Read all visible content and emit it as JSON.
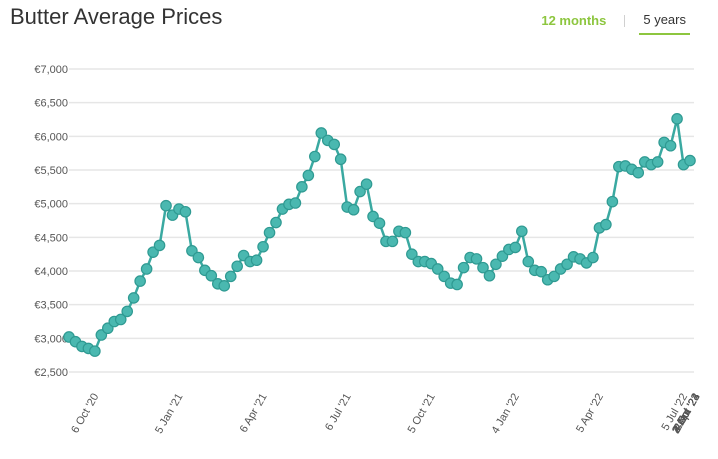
{
  "title": "Butter Average Prices",
  "tabs": {
    "twelve_months": "12 months",
    "five_years": "5 years",
    "active": "5 years"
  },
  "colors": {
    "line": "#3aa9a1",
    "marker": "#4ab8b0",
    "marker_stroke": "#2f9a92",
    "accent": "#8dc63f",
    "grid": "#e6e6e6"
  },
  "chart_data": {
    "type": "line",
    "title": "Butter Average Prices",
    "xlabel": "",
    "ylabel": "",
    "ylim": [
      2500,
      7000
    ],
    "y_ticks": [
      2500,
      3000,
      3500,
      4000,
      4500,
      5000,
      5500,
      6000,
      6500,
      7000
    ],
    "y_tick_labels": [
      "€2,500",
      "€3,000",
      "€3,500",
      "€4,000",
      "€4,500",
      "€5,000",
      "€5,500",
      "€6,000",
      "€6,500",
      "€7,000"
    ],
    "x_tick_labels": [
      "6 Oct '20",
      "5 Jan '21",
      "6 Apr '21",
      "6 Jul '21",
      "5 Oct '21",
      "4 Jan '22",
      "5 Apr '22",
      "5 Jul '22",
      "4 Oct '22",
      "3 Jan '23",
      "4 Apr '23",
      "4 Jul '23",
      "3 Oct '23",
      "2 Jan '24",
      "2 Apr '24",
      "2 Jul '24"
    ],
    "x_tick_positions": [
      4,
      17,
      30,
      43,
      56,
      69,
      82,
      95,
      108,
      121,
      134,
      147,
      160,
      173,
      186,
      199
    ],
    "grid": true,
    "legend": "none",
    "series": [
      {
        "values": [
          3020,
          2950,
          2880,
          2850,
          2810,
          3050,
          3150,
          3250,
          3280,
          3400,
          3600,
          3850,
          4030,
          4280,
          4380,
          4970,
          4830,
          4920,
          4880,
          4300,
          4200,
          4010,
          3930,
          3810,
          3780,
          3920,
          4070,
          4230,
          4140,
          4160,
          4360,
          4570,
          4720,
          4920,
          4990,
          5010,
          5250,
          5420,
          5700,
          6050,
          5940,
          5880,
          5660,
          4950,
          4910,
          5180,
          5290,
          4810,
          4710,
          4440,
          4440,
          4590,
          4570,
          4250,
          4140,
          4140,
          4110,
          4030,
          3920,
          3820,
          3800,
          4050,
          4200,
          4180,
          4050,
          3930,
          4100,
          4220,
          4320,
          4350,
          4590,
          4140,
          4010,
          3990,
          3870,
          3920,
          4030,
          4100,
          4210,
          4180,
          4120,
          4200,
          4640,
          4690,
          5030,
          5550,
          5560,
          5510,
          5460,
          5620,
          5580,
          5620,
          5910,
          5860,
          6260,
          5580,
          5640
        ]
      }
    ]
  }
}
